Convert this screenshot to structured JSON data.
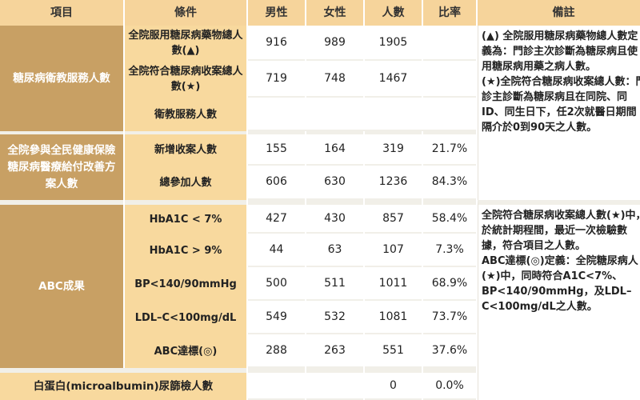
{
  "headers": [
    "項目",
    "條件",
    "男性",
    "女性",
    "人數",
    "比率",
    "備註"
  ],
  "sections": [
    {
      "label": "糖尿病衛教服務人數",
      "rows": [
        {
          "cond": "全院服用糖尿病藥物總人數(▲)",
          "male": "916",
          "female": "989",
          "total": "1905",
          "rate": ""
        },
        {
          "cond": "全院符合糖尿病收案總人數(★)",
          "male": "719",
          "female": "748",
          "total": "1467",
          "rate": ""
        },
        {
          "cond": "衛教服務人數",
          "male": "",
          "female": "",
          "total": "",
          "rate": ""
        }
      ]
    },
    {
      "label": "全院參與全民健康保險糖尿病醫療給付改善方案人數",
      "rows": [
        {
          "cond": "新增收案人數",
          "male": "155",
          "female": "164",
          "total": "319",
          "rate": "21.7%"
        },
        {
          "cond": "總參加人數",
          "male": "606",
          "female": "630",
          "total": "1236",
          "rate": "84.3%"
        }
      ]
    },
    {
      "label": "ABC成果",
      "rows": [
        {
          "cond": "HbA1C < 7%",
          "male": "427",
          "female": "430",
          "total": "857",
          "rate": "58.4%"
        },
        {
          "cond": "HbA1C > 9%",
          "male": "44",
          "female": "63",
          "total": "107",
          "rate": "7.3%"
        },
        {
          "cond": "BP<140/90mmHg",
          "male": "500",
          "female": "511",
          "total": "1011",
          "rate": "68.9%"
        },
        {
          "cond": "LDL–C<100mg/dL",
          "male": "549",
          "female": "532",
          "total": "1081",
          "rate": "73.7%"
        },
        {
          "cond": "ABC達標(◎)",
          "male": "288",
          "female": "263",
          "total": "551",
          "rate": "37.6%"
        }
      ]
    },
    {
      "label": "白蛋白(microalbumin)尿篩檢人數",
      "rows": [
        {
          "cond": "",
          "male": "",
          "female": "",
          "total": "0",
          "rate": "0.0%"
        }
      ]
    }
  ],
  "notes": {
    "first": [
      "(▲) 全院服用糖尿病藥物總人數定義為：門診主次診斷為糖尿病且使用糖尿病用藥之病人數。",
      "(★)全院符合糖尿病收案總人數：門診主診斷為糖尿病且在同院、同ID、同生日下，任2次就醫日期間隔介於0到90天之人數。"
    ],
    "second": [
      "全院符合糖尿病收案總人數(★)中，於統計期程間，最近一次檢驗數據，符合項目之人數。",
      "ABC達標(◎)定義：全院糖尿病人(★)中，同時符合A1C<7%、BP<140/90mmHg，及LDL–C<100mg/dL之人數。"
    ]
  }
}
